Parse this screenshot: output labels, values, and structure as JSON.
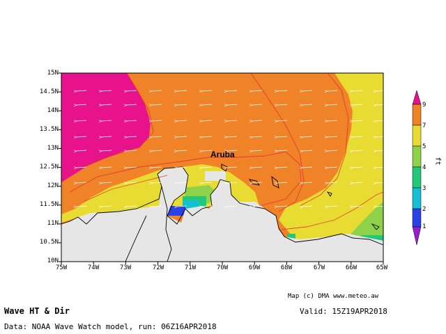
{
  "map": {
    "place_label": "Aruba",
    "lat_labels": [
      "15N",
      "14.5N",
      "14N",
      "13.5N",
      "13N",
      "12.5N",
      "12N",
      "11.5N",
      "11N",
      "10.5N",
      "10N"
    ],
    "lon_labels": [
      "75W",
      "74W",
      "73W",
      "72W",
      "71W",
      "70W",
      "69W",
      "68W",
      "67W",
      "66W",
      "65W"
    ]
  },
  "colorbar": {
    "unit": "ft",
    "levels": [
      "9",
      "7",
      "5",
      "4",
      "3",
      "2",
      "1"
    ],
    "colors": {
      "magenta": "#e8138c",
      "orange": "#f08228",
      "yellow": "#e8dc32",
      "light_green": "#8ed24a",
      "green": "#22c87a",
      "cyan": "#14c0d2",
      "blue": "#2842e6",
      "purple": "#9a1cd0",
      "land": "#e6e6e6"
    }
  },
  "footer": {
    "credit": "Map (c) DMA www.meteo.aw",
    "title": "Wave HT & Dir",
    "valid": "Valid: 15Z19APR2018",
    "source": "Data: NOAA Wave Watch model, run: 06Z16APR2018"
  }
}
